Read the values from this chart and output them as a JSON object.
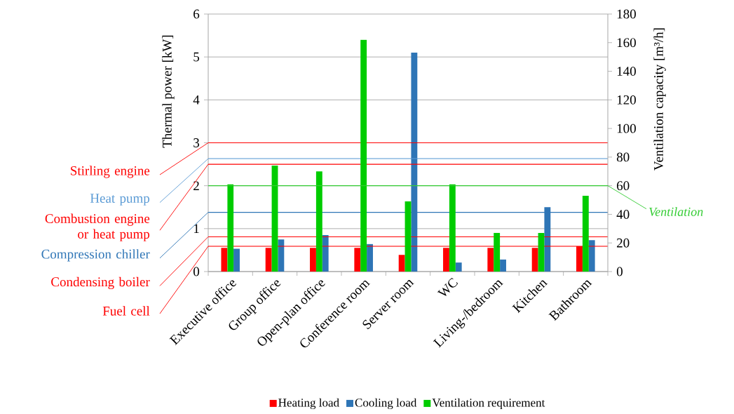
{
  "chart_data": {
    "type": "bar",
    "categories": [
      "Executive office",
      "Group office",
      "Open-plan office",
      "Conference room",
      "Server room",
      "WC",
      "Living-/bedroom",
      "Kitchen",
      "Bathroom"
    ],
    "series": [
      {
        "name": "Heating load",
        "color": "#ff0000",
        "axis": "y",
        "values": [
          0.55,
          0.55,
          0.55,
          0.55,
          0.39,
          0.55,
          0.55,
          0.55,
          0.59
        ]
      },
      {
        "name": "Ventilation requirement",
        "color": "#00cc00",
        "axis": "y2",
        "values": [
          61,
          74,
          70,
          162,
          49,
          61,
          27,
          27,
          53
        ]
      },
      {
        "name": "Cooling load",
        "color": "#2e75b6",
        "axis": "y",
        "values": [
          0.53,
          0.75,
          0.85,
          0.64,
          5.1,
          0.21,
          0.28,
          1.5,
          0.73
        ]
      }
    ],
    "ylabel": "Thermal power [kW]",
    "y2label": "Ventilation capacity [m³/h]",
    "ylim": [
      0,
      6
    ],
    "yticks": [
      0,
      1,
      2,
      3,
      4,
      5,
      6
    ],
    "y2lim": [
      0,
      180
    ],
    "y2ticks": [
      0,
      20,
      40,
      60,
      80,
      100,
      120,
      140,
      160,
      180
    ],
    "grid": "y",
    "legend": "bottom",
    "ref_lines": [
      {
        "axis": "y",
        "value": 3.0,
        "label": "Stirling engine",
        "color": "#ff0000"
      },
      {
        "axis": "y",
        "value": 2.63,
        "label": "Heat pump",
        "color": "#5b9bd5"
      },
      {
        "axis": "y",
        "value": 2.5,
        "label": "Combustion engine or heat pump",
        "color": "#ff0000"
      },
      {
        "axis": "y",
        "value": 1.38,
        "label": "Compression chiller",
        "color": "#2e75b6"
      },
      {
        "axis": "y",
        "value": 0.81,
        "label": "Condensing boiler",
        "color": "#ff0000"
      },
      {
        "axis": "y",
        "value": 0.59,
        "label": "Fuel cell",
        "color": "#ff0000"
      },
      {
        "axis": "y2",
        "value": 60,
        "label": "Ventilation",
        "color": "#33cc33"
      }
    ]
  }
}
